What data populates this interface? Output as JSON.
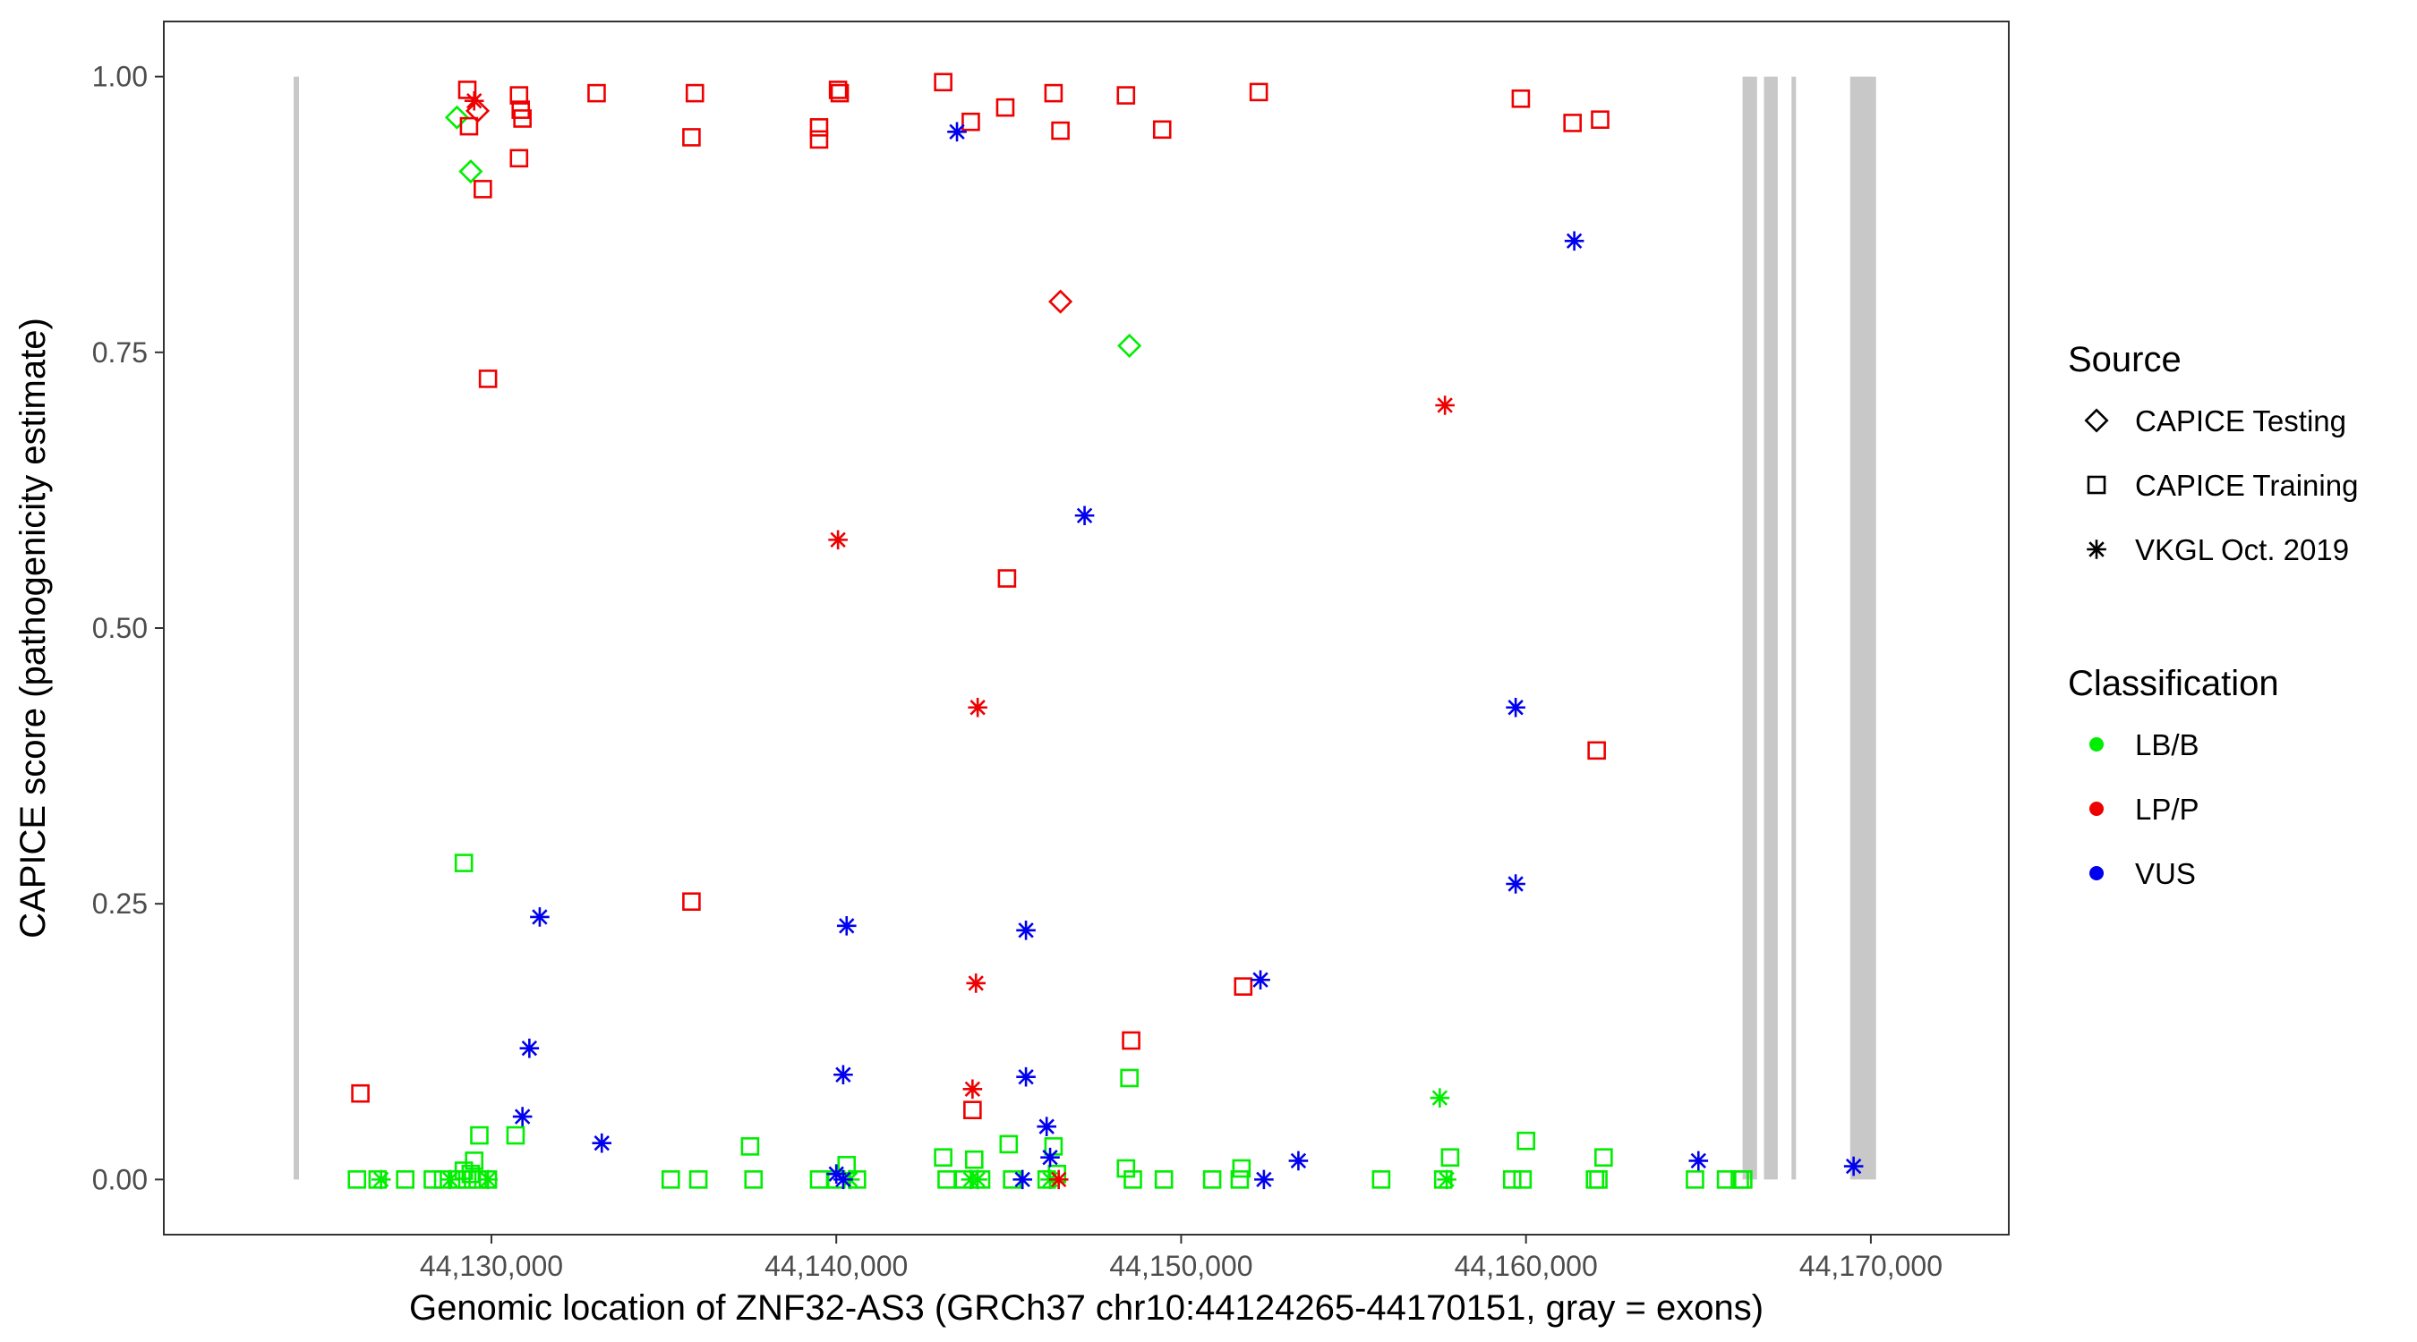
{
  "chart_data": {
    "type": "scatter",
    "title": "",
    "xlabel": "Genomic location of ZNF32-AS3 (GRCh37 chr10:44124265-44170151, gray = exons)",
    "ylabel": "CAPICE score (pathogenicity estimate)",
    "xlim": [
      44120500,
      44174000
    ],
    "ylim": [
      -0.05,
      1.05
    ],
    "x_ticks": [
      44130000,
      44140000,
      44150000,
      44160000,
      44170000
    ],
    "x_tick_labels": [
      "44,130,000",
      "44,140,000",
      "44,150,000",
      "44,160,000",
      "44,170,000"
    ],
    "y_ticks": [
      0,
      0.25,
      0.5,
      0.75,
      1.0
    ],
    "y_tick_labels": [
      "0.00",
      "0.25",
      "0.50",
      "0.75",
      "1.00"
    ],
    "grid": false,
    "legend_position": "right",
    "exons": [
      [
        44124265,
        44124420
      ],
      [
        44166280,
        44166700
      ],
      [
        44166900,
        44167300
      ],
      [
        44167700,
        44167800
      ],
      [
        44169400,
        44170151
      ]
    ],
    "colors": {
      "LB/B": "#00ee00",
      "LP/P": "#ee0000",
      "VUS": "#0000ee",
      "exon": "#c8c8c8"
    },
    "legend": {
      "source_title": "Source",
      "source_items": [
        {
          "label": "CAPICE Testing",
          "shape": "diamond"
        },
        {
          "label": "CAPICE Training",
          "shape": "square"
        },
        {
          "label": "VKGL Oct. 2019",
          "shape": "asterisk"
        }
      ],
      "class_title": "Classification",
      "class_items": [
        {
          "label": "LB/B",
          "color": "#00ee00"
        },
        {
          "label": "LP/P",
          "color": "#ee0000"
        },
        {
          "label": "VUS",
          "color": "#0000ee"
        }
      ]
    },
    "series": [
      {
        "name": "LP/P",
        "color": "#ee0000",
        "training": [
          [
            44126200,
            0.078
          ],
          [
            44129300,
            0.988
          ],
          [
            44129350,
            0.955
          ],
          [
            44129750,
            0.898
          ],
          [
            44129900,
            0.726
          ],
          [
            44130800,
            0.983
          ],
          [
            44130850,
            0.97
          ],
          [
            44130900,
            0.962
          ],
          [
            44130800,
            0.926
          ],
          [
            44133050,
            0.985
          ],
          [
            44135800,
            0.945
          ],
          [
            44135900,
            0.985
          ],
          [
            44135800,
            0.252
          ],
          [
            44139500,
            0.954
          ],
          [
            44139500,
            0.943
          ],
          [
            44140050,
            0.988
          ],
          [
            44140100,
            0.985
          ],
          [
            44143100,
            0.995
          ],
          [
            44143900,
            0.959
          ],
          [
            44143950,
            0.063
          ],
          [
            44144900,
            0.972
          ],
          [
            44144950,
            0.545
          ],
          [
            44146300,
            0.985
          ],
          [
            44146500,
            0.951
          ],
          [
            44148400,
            0.983
          ],
          [
            44148550,
            0.126
          ],
          [
            44149450,
            0.952
          ],
          [
            44151800,
            0.175
          ],
          [
            44152250,
            0.986
          ],
          [
            44159850,
            0.98
          ],
          [
            44161350,
            0.958
          ],
          [
            44162150,
            0.961
          ],
          [
            44162050,
            0.389
          ]
        ],
        "testing": [
          [
            44129600,
            0.969
          ],
          [
            44146500,
            0.796
          ]
        ],
        "vkgl": [
          [
            44129500,
            0.978
          ],
          [
            44140050,
            0.58
          ],
          [
            44144100,
            0.428
          ],
          [
            44144050,
            0.178
          ],
          [
            44143950,
            0.082
          ],
          [
            44146450,
            0.0
          ],
          [
            44157650,
            0.702
          ]
        ]
      },
      {
        "name": "LB/B",
        "color": "#00ee00",
        "training": [
          [
            44126100,
            0.0
          ],
          [
            44126700,
            0.0
          ],
          [
            44127500,
            0.0
          ],
          [
            44128300,
            0.0
          ],
          [
            44128600,
            0.0
          ],
          [
            44129000,
            0.0
          ],
          [
            44129300,
            0.0
          ],
          [
            44129600,
            0.0
          ],
          [
            44129900,
            0.0
          ],
          [
            44129200,
            0.287
          ],
          [
            44129650,
            0.04
          ],
          [
            44129500,
            0.017
          ],
          [
            44129200,
            0.008
          ],
          [
            44129400,
            0.005
          ],
          [
            44130700,
            0.04
          ],
          [
            44135200,
            0.0
          ],
          [
            44136000,
            0.0
          ],
          [
            44137600,
            0.0
          ],
          [
            44137500,
            0.03
          ],
          [
            44139500,
            0.0
          ],
          [
            44140000,
            0.0
          ],
          [
            44140300,
            0.013
          ],
          [
            44140600,
            0.0
          ],
          [
            44143100,
            0.02
          ],
          [
            44143200,
            0.0
          ],
          [
            44143700,
            0.0
          ],
          [
            44144000,
            0.018
          ],
          [
            44144200,
            0.0
          ],
          [
            44145000,
            0.032
          ],
          [
            44145100,
            0.0
          ],
          [
            44146100,
            0.0
          ],
          [
            44146300,
            0.03
          ],
          [
            44146400,
            0.005
          ],
          [
            44148400,
            0.01
          ],
          [
            44148600,
            0.0
          ],
          [
            44148500,
            0.092
          ],
          [
            44149500,
            0.0
          ],
          [
            44150900,
            0.0
          ],
          [
            44151700,
            0.0
          ],
          [
            44151750,
            0.01
          ],
          [
            44155800,
            0.0
          ],
          [
            44157600,
            0.0
          ],
          [
            44157800,
            0.02
          ],
          [
            44159600,
            0.0
          ],
          [
            44159900,
            0.0
          ],
          [
            44160000,
            0.035
          ],
          [
            44162000,
            0.0
          ],
          [
            44162100,
            0.0
          ],
          [
            44162250,
            0.02
          ],
          [
            44164900,
            0.0
          ],
          [
            44165800,
            0.0
          ],
          [
            44166200,
            0.0
          ],
          [
            44166300,
            0.0
          ]
        ],
        "testing": [
          [
            44129000,
            0.963
          ],
          [
            44129400,
            0.914
          ],
          [
            44148500,
            0.756
          ]
        ],
        "vkgl": [
          [
            44126800,
            0.0
          ],
          [
            44128800,
            0.0
          ],
          [
            44129900,
            0.0
          ],
          [
            44140400,
            0.0
          ],
          [
            44143900,
            0.0
          ],
          [
            44144100,
            0.0
          ],
          [
            44146200,
            0.0
          ],
          [
            44157500,
            0.074
          ],
          [
            44157700,
            0.0
          ]
        ]
      },
      {
        "name": "VUS",
        "color": "#0000ee",
        "training": [],
        "testing": [],
        "vkgl": [
          [
            44143500,
            0.95
          ],
          [
            44161400,
            0.851
          ],
          [
            44147200,
            0.602
          ],
          [
            44159700,
            0.428
          ],
          [
            44159700,
            0.268
          ],
          [
            44131400,
            0.238
          ],
          [
            44140300,
            0.23
          ],
          [
            44145500,
            0.226
          ],
          [
            44152300,
            0.181
          ],
          [
            44131100,
            0.119
          ],
          [
            44140200,
            0.095
          ],
          [
            44145500,
            0.093
          ],
          [
            44130900,
            0.057
          ],
          [
            44133200,
            0.033
          ],
          [
            44146100,
            0.048
          ],
          [
            44146200,
            0.02
          ],
          [
            44140000,
            0.005
          ],
          [
            44140200,
            0.0
          ],
          [
            44145400,
            0.0
          ],
          [
            44152400,
            0.0
          ],
          [
            44153400,
            0.017
          ],
          [
            44165000,
            0.017
          ],
          [
            44169500,
            0.012
          ]
        ]
      }
    ]
  }
}
